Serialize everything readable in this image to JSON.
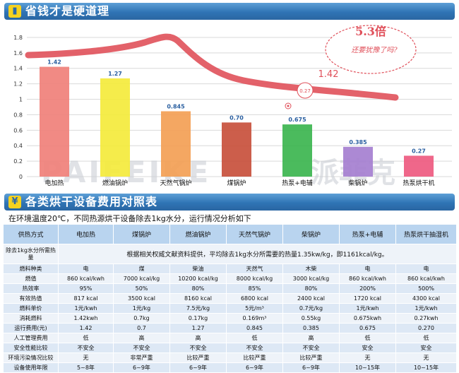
{
  "header1": {
    "icon": "chart-icon",
    "title": "省钱才是硬道理"
  },
  "header2": {
    "icon": "yen-icon",
    "title": "各类烘干设备费用对照表"
  },
  "colors": {
    "header_bg": "#2f74b5",
    "curve": "#e0505a",
    "table_head": "#b9d4ef",
    "table_row": "#dde8f5"
  },
  "chart_data": {
    "type": "bar",
    "categories": [
      "电加热",
      "燃油锅炉",
      "天然气锅炉",
      "煤锅炉",
      "热泵+电辅",
      "柴锅炉",
      "热泵烘干机"
    ],
    "values": [
      1.42,
      1.27,
      0.845,
      0.7,
      0.675,
      0.385,
      0.27
    ],
    "value_labels": [
      "1.42",
      "1.27",
      "0.845",
      "0.70",
      "0.675",
      "0.385",
      "0.27"
    ],
    "colors": [
      "#f0807a",
      "#f4ea3c",
      "#f3a055",
      "#c8503c",
      "#3cb54f",
      "#a57fd0",
      "#ee5a80"
    ],
    "yticks": [
      "0",
      "0.2",
      "0.4",
      "0.6",
      "0.8",
      "1",
      "1.2",
      "1.4",
      "1.6",
      "1.8"
    ],
    "ylim": [
      0,
      1.9
    ],
    "grid": true,
    "annotations": {
      "multiple": "5.3倍",
      "handwritten": "还要犹豫了吗?",
      "curve_start": "1.42",
      "curve_end": "0.27",
      "watermark": "PAIFEIKE",
      "watermark_cn": "派菲克"
    }
  },
  "caption": "在环境温度20℃，不同热源烘干设备除去1kg水分，运行情况分析如下",
  "table": {
    "headers": [
      "供热方式",
      "电加热",
      "煤锅炉",
      "燃油锅炉",
      "天然气锅炉",
      "柴锅炉",
      "热泵+电辅",
      "热泵烘干抽湿机"
    ],
    "note_label": "除去1kg水分所需热量",
    "note_text": "根据相关权威文献资料提供，平均除去1kg水分所需要的热量1.35kw/kg，即1161kcal/kg。",
    "rows": [
      [
        "燃料种类",
        "电",
        "煤",
        "柴油",
        "天然气",
        "木柴",
        "电",
        "电"
      ],
      [
        "燃值",
        "860 kcal/kwh",
        "7000 kcal/kg",
        "10200 kcal/kg",
        "8000 kcal/kg",
        "3000 kcal/kg",
        "860 kcal/kwh",
        "860 kcal/kwh"
      ],
      [
        "热效率",
        "95%",
        "50%",
        "80%",
        "85%",
        "80%",
        "200%",
        "500%"
      ],
      [
        "有效热值",
        "817 kcal",
        "3500 kcal",
        "8160 kcal",
        "6800 kcal",
        "2400 kcal",
        "1720 kcal",
        "4300 kcal"
      ],
      [
        "燃料单价",
        "1元/kwh",
        "1元/kg",
        "7.5元/kg",
        "5元/m³",
        "0.7元/kg",
        "1元/kwh",
        "1元/kwh"
      ],
      [
        "消耗燃料",
        "1.42kwh",
        "0.7kg",
        "0.17kg",
        "0.169m³",
        "0.55kg",
        "0.675kwh",
        "0.27kwh"
      ],
      [
        "运行费用(元)",
        "1.42",
        "0.7",
        "1.27",
        "0.845",
        "0.385",
        "0.675",
        "0.270"
      ],
      [
        "人工管理费用",
        "低",
        "高",
        "高",
        "低",
        "高",
        "低",
        "低"
      ],
      [
        "安全性能比较",
        "不安全",
        "不安全",
        "不安全",
        "不安全",
        "不安全",
        "安全",
        "安全"
      ],
      [
        "环境污染情况比较",
        "无",
        "非常严重",
        "比较严重",
        "比较严重",
        "比较严重",
        "无",
        "无"
      ],
      [
        "设备使用年限",
        "5~8年",
        "6~9年",
        "6~9年",
        "6~9年",
        "6~9年",
        "10~15年",
        "10~15年"
      ]
    ]
  }
}
